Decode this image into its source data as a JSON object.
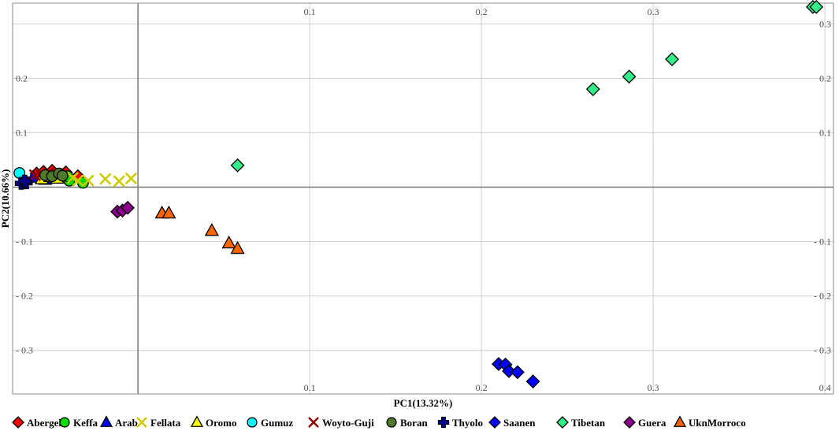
{
  "chart_data": {
    "type": "scatter",
    "xlabel": "PC1(13.32%)",
    "ylabel": "PC2(10.66%)",
    "xlim": [
      -0.073,
      0.405
    ],
    "ylim": [
      -0.38,
      0.338
    ],
    "x_ticks": [
      0.1,
      0.2,
      0.3,
      0.4
    ],
    "y_ticks": [
      0.3,
      0.2,
      0.1,
      -0.1,
      -0.2,
      -0.3
    ],
    "tick_labels": {
      "x_bottom": [
        "0.1",
        "0.2",
        "0.3",
        "0.4"
      ],
      "x_top": [
        "0.1",
        "0.2",
        "0.3"
      ],
      "y_left": [
        "0.2",
        "0.1",
        "- 0.1",
        "- 0.2",
        "- 0.3"
      ],
      "y_right": [
        "0.3",
        "0.2",
        "0.1",
        "- 0.1",
        "- 0.2",
        "- 0.3"
      ]
    },
    "reference_lines": {
      "x": 0,
      "y": 0
    },
    "grid": true,
    "legend_position": "bottom",
    "series": [
      {
        "name": "Abergelle",
        "marker": "diamond",
        "color": "#ff0000",
        "points": [
          [
            -0.059,
            0.025
          ],
          [
            -0.055,
            0.028
          ],
          [
            -0.05,
            0.03
          ],
          [
            -0.044,
            0.022
          ],
          [
            -0.04,
            0.018
          ],
          [
            -0.035,
            0.02
          ],
          [
            -0.042,
            0.027
          ]
        ]
      },
      {
        "name": "Keffa",
        "marker": "circle",
        "color": "#00dd00",
        "points": [
          [
            -0.04,
            0.012
          ],
          [
            -0.032,
            0.008
          ],
          [
            -0.041,
            0.02
          ]
        ]
      },
      {
        "name": "Arab",
        "marker": "triangle",
        "color": "#0000ee",
        "points": [
          [
            -0.061,
            0.018
          ],
          [
            -0.054,
            0.014
          ]
        ]
      },
      {
        "name": "Fellata",
        "marker": "x",
        "color": "#cccc00",
        "points": [
          [
            -0.035,
            0.012
          ],
          [
            -0.029,
            0.012
          ],
          [
            -0.019,
            0.015
          ],
          [
            -0.011,
            0.011
          ],
          [
            -0.004,
            0.016
          ],
          [
            -0.038,
            0.017
          ]
        ]
      },
      {
        "name": "Oromo",
        "marker": "triangle",
        "color": "#ffff00",
        "points": [
          [
            -0.056,
            0.015
          ],
          [
            -0.051,
            0.019
          ],
          [
            -0.047,
            0.016
          ]
        ]
      },
      {
        "name": "Gumuz",
        "marker": "circle",
        "color": "#00ffff",
        "points": [
          [
            -0.069,
            0.026
          ]
        ]
      },
      {
        "name": "Woyto-Guji",
        "marker": "x",
        "color": "#8b0000",
        "points": [
          [
            -0.06,
            0.022
          ],
          [
            -0.057,
            0.024
          ],
          [
            -0.052,
            0.026
          ]
        ]
      },
      {
        "name": "Boran",
        "marker": "circle",
        "color": "#4e7a2a",
        "points": [
          [
            -0.054,
            0.022
          ],
          [
            -0.05,
            0.02
          ],
          [
            -0.046,
            0.025
          ],
          [
            -0.044,
            0.021
          ]
        ]
      },
      {
        "name": "Thyolo",
        "marker": "plus",
        "color": "#00008b",
        "points": [
          [
            -0.068,
            0.007
          ],
          [
            -0.065,
            0.008
          ],
          [
            -0.066,
            0.011
          ]
        ]
      },
      {
        "name": "Saanen",
        "marker": "diamond",
        "color": "#0000ff",
        "points": [
          [
            0.21,
            -0.325
          ],
          [
            0.214,
            -0.326
          ],
          [
            0.216,
            -0.338
          ],
          [
            0.221,
            -0.34
          ],
          [
            0.23,
            -0.357
          ]
        ]
      },
      {
        "name": "Tibetan",
        "marker": "diamond",
        "color": "#33ee88",
        "points": [
          [
            0.058,
            0.04
          ],
          [
            0.265,
            0.18
          ],
          [
            0.286,
            0.203
          ],
          [
            0.311,
            0.235
          ],
          [
            0.393,
            0.331
          ],
          [
            0.395,
            0.331
          ]
        ]
      },
      {
        "name": "Guera",
        "marker": "diamond",
        "color": "#8b008b",
        "points": [
          [
            -0.012,
            -0.045
          ],
          [
            -0.009,
            -0.043
          ],
          [
            -0.006,
            -0.038
          ]
        ]
      },
      {
        "name": "UknMorroco",
        "marker": "triangle",
        "color": "#ff6600",
        "points": [
          [
            0.014,
            -0.048
          ],
          [
            0.018,
            -0.048
          ],
          [
            0.043,
            -0.08
          ],
          [
            0.053,
            -0.103
          ],
          [
            0.058,
            -0.113
          ]
        ]
      }
    ]
  }
}
